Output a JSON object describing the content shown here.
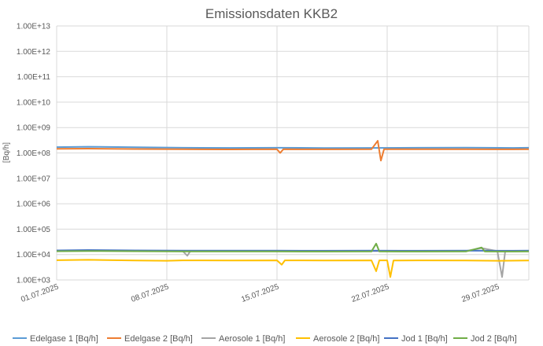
{
  "chart_data": {
    "type": "line",
    "title": "Emissionsdaten KKB2",
    "ylabel": "[Bq/h]",
    "xlabel": "",
    "y_scale": "log",
    "ylim": [
      1000,
      10000000000000
    ],
    "y_ticks": [
      "1.00E+03",
      "1.00E+04",
      "1.00E+05",
      "1.00E+06",
      "1.00E+07",
      "1.00E+08",
      "1.00E+09",
      "1.00E+10",
      "1.00E+11",
      "1.00E+12",
      "1.00E+13"
    ],
    "y_tick_values": [
      1000.0,
      10000.0,
      100000.0,
      1000000.0,
      10000000.0,
      100000000.0,
      1000000000.0,
      10000000000.0,
      100000000000.0,
      1000000000000.0,
      10000000000000.0
    ],
    "xlim": [
      "2025-07-01",
      "2025-07-31"
    ],
    "x_ticks": [
      "01.07.2025",
      "08.07.2025",
      "15.07.2025",
      "22.07.2025",
      "29.07.2025"
    ],
    "x_tick_dates": [
      "2025-07-01",
      "2025-07-08",
      "2025-07-15",
      "2025-07-22",
      "2025-07-29"
    ],
    "grid": true,
    "legend_position": "bottom",
    "series": [
      {
        "name": "Edelgase 1 [Bq/h]",
        "color": "#5b9bd5",
        "x": [
          "2025-07-01",
          "2025-07-03",
          "2025-07-06",
          "2025-07-09",
          "2025-07-12",
          "2025-07-15",
          "2025-07-18",
          "2025-07-21",
          "2025-07-24",
          "2025-07-27",
          "2025-07-30",
          "2025-07-31"
        ],
        "y": [
          170000000,
          175000000,
          168000000,
          160000000,
          158000000,
          160000000,
          157000000,
          158000000,
          160000000,
          162000000,
          158000000,
          160000000
        ]
      },
      {
        "name": "Edelgase 2 [Bq/h]",
        "color": "#ed7d31",
        "x": [
          "2025-07-01",
          "2025-07-03",
          "2025-07-06",
          "2025-07-09",
          "2025-07-12",
          "2025-07-15",
          "2025-07-15.2",
          "2025-07-15.4",
          "2025-07-18",
          "2025-07-21",
          "2025-07-21.4",
          "2025-07-21.6",
          "2025-07-21.8",
          "2025-07-24",
          "2025-07-27",
          "2025-07-30",
          "2025-07-31"
        ],
        "y": [
          145000000,
          148000000,
          143000000,
          140000000,
          138000000,
          140000000,
          100000000,
          140000000,
          139000000,
          140000000,
          300000000,
          50000000,
          140000000,
          141000000,
          140000000,
          139000000,
          140000000
        ]
      },
      {
        "name": "Aerosole 1 [Bq/h]",
        "color": "#a5a5a5",
        "x": [
          "2025-07-01",
          "2025-07-03",
          "2025-07-06",
          "2025-07-08",
          "2025-07-09",
          "2025-07-09.3",
          "2025-07-09.5",
          "2025-07-12",
          "2025-07-15",
          "2025-07-18",
          "2025-07-21",
          "2025-07-24",
          "2025-07-27",
          "2025-07-28",
          "2025-07-29",
          "2025-07-29.3",
          "2025-07-29.5",
          "2025-07-31"
        ],
        "y": [
          14000,
          14500,
          14000,
          13500,
          13800,
          9000,
          13800,
          13800,
          13700,
          13600,
          13800,
          13700,
          13800,
          18000,
          13700,
          1300,
          13700,
          13800
        ]
      },
      {
        "name": "Aerosole 2 [Bq/h]",
        "color": "#ffc000",
        "x": [
          "2025-07-01",
          "2025-07-03",
          "2025-07-06",
          "2025-07-08",
          "2025-07-09",
          "2025-07-12",
          "2025-07-15",
          "2025-07-15.3",
          "2025-07-15.5",
          "2025-07-18",
          "2025-07-21",
          "2025-07-21.3",
          "2025-07-21.5",
          "2025-07-22",
          "2025-07-22.2",
          "2025-07-22.4",
          "2025-07-24",
          "2025-07-27",
          "2025-07-29",
          "2025-07-31"
        ],
        "y": [
          6000,
          6200,
          5800,
          5700,
          5900,
          5800,
          5900,
          4000,
          5900,
          5800,
          5900,
          2200,
          5900,
          5900,
          1300,
          5800,
          5900,
          5800,
          5700,
          5800
        ]
      },
      {
        "name": "Jod 1 [Bq/h]",
        "color": "#4472c4",
        "x": [
          "2025-07-01",
          "2025-07-03",
          "2025-07-06",
          "2025-07-09",
          "2025-07-12",
          "2025-07-15",
          "2025-07-18",
          "2025-07-21",
          "2025-07-24",
          "2025-07-27",
          "2025-07-30",
          "2025-07-31"
        ],
        "y": [
          14500,
          15000,
          14500,
          14200,
          14300,
          14200,
          14100,
          14200,
          14100,
          14200,
          14100,
          14200
        ]
      },
      {
        "name": "Jod 2 [Bq/h]",
        "color": "#70ad47",
        "x": [
          "2025-07-01",
          "2025-07-03",
          "2025-07-06",
          "2025-07-09",
          "2025-07-12",
          "2025-07-15",
          "2025-07-18",
          "2025-07-21",
          "2025-07-21.3",
          "2025-07-21.5",
          "2025-07-24",
          "2025-07-27",
          "2025-07-28",
          "2025-07-28.2",
          "2025-07-30",
          "2025-07-31"
        ],
        "y": [
          13500,
          13800,
          13500,
          13200,
          13300,
          13200,
          13100,
          13200,
          27000,
          13200,
          13100,
          13200,
          19000,
          13200,
          13100,
          13200
        ]
      }
    ]
  }
}
